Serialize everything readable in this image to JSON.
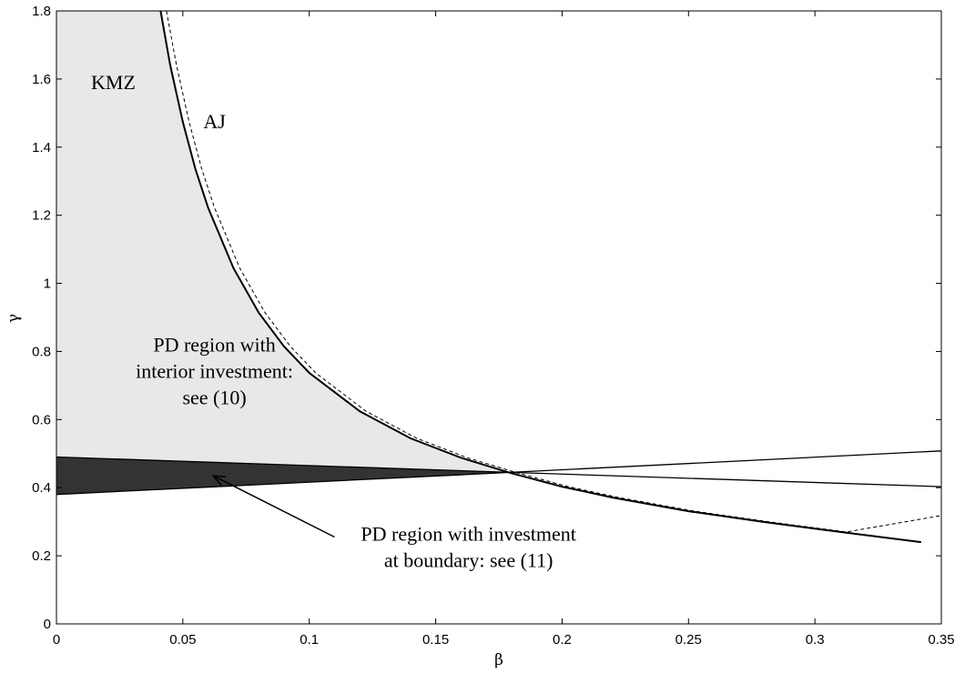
{
  "chart_data": {
    "type": "line",
    "title": "",
    "xlabel": "β",
    "ylabel": "γ",
    "xlim": [
      0,
      0.35
    ],
    "ylim": [
      0,
      1.8
    ],
    "grid": false,
    "x_ticks": [
      "0",
      "0.05",
      "0.1",
      "0.15",
      "0.2",
      "0.25",
      "0.3",
      "0.35"
    ],
    "y_ticks": [
      "0",
      "0.2",
      "0.4",
      "0.6",
      "0.8",
      "1",
      "1.2",
      "1.4",
      "1.6",
      "1.8"
    ],
    "series": [
      {
        "name": "KMZ",
        "style": "solid",
        "x": [
          0.0412,
          0.045,
          0.05,
          0.055,
          0.06,
          0.07,
          0.08,
          0.09,
          0.1,
          0.12,
          0.14,
          0.16,
          0.1796,
          0.2,
          0.22,
          0.25,
          0.28,
          0.31,
          0.342
        ],
        "y": [
          1.8,
          1.64,
          1.473,
          1.335,
          1.222,
          1.045,
          0.914,
          0.815,
          0.737,
          0.624,
          0.545,
          0.488,
          0.443,
          0.403,
          0.371,
          0.331,
          0.299,
          0.27,
          0.24
        ]
      },
      {
        "name": "AJ",
        "style": "dashed",
        "x": [
          0.0435,
          0.0475,
          0.0525,
          0.0575,
          0.0625,
          0.0725,
          0.0825,
          0.0925,
          0.1025,
          0.1225,
          0.1425,
          0.1625,
          0.1825,
          0.2025,
          0.2225,
          0.2525,
          0.2825,
          0.3125,
          0.35
        ],
        "y": [
          1.8,
          1.64,
          1.473,
          1.335,
          1.222,
          1.045,
          0.914,
          0.815,
          0.737,
          0.624,
          0.545,
          0.488,
          0.443,
          0.403,
          0.371,
          0.331,
          0.299,
          0.27,
          0.318
        ]
      },
      {
        "name": "",
        "style": "solid",
        "x": [
          0,
          0.1796,
          0.35
        ],
        "y": [
          0.38,
          0.445,
          0.508
        ]
      },
      {
        "name": "",
        "style": "solid",
        "x": [
          0,
          0.1796,
          0.35
        ],
        "y": [
          0.49,
          0.445,
          0.403
        ]
      }
    ],
    "regions": [
      {
        "name": "PD region with interior investment",
        "color": "#e8e8e8",
        "boundary_x": [
          0,
          0,
          0.0412,
          0.045,
          0.05,
          0.055,
          0.06,
          0.07,
          0.08,
          0.09,
          0.1,
          0.12,
          0.14,
          0.16,
          0.1796
        ],
        "boundary_y": [
          0.49,
          1.8,
          1.8,
          1.64,
          1.473,
          1.335,
          1.222,
          1.045,
          0.914,
          0.815,
          0.737,
          0.624,
          0.545,
          0.488,
          0.445
        ]
      },
      {
        "name": "PD region with investment at boundary",
        "color": "#333333",
        "boundary_x": [
          0,
          0.1796,
          0
        ],
        "boundary_y": [
          0.49,
          0.445,
          0.38
        ]
      }
    ],
    "annotations": [
      {
        "lines": [
          "KMZ"
        ],
        "x": 0.0225,
        "y": 1.57
      },
      {
        "lines": [
          "AJ"
        ],
        "x": 0.0625,
        "y": 1.455
      },
      {
        "lines": [
          "PD region with",
          "interior investment:",
          "see (10)"
        ],
        "x": 0.0625,
        "y": 0.8
      },
      {
        "lines": [
          "PD region with investment",
          "at boundary: see (11)"
        ],
        "x": 0.163,
        "y": 0.245
      }
    ],
    "arrows": [
      {
        "from_x": 0.11,
        "from_y": 0.255,
        "to_x": 0.062,
        "to_y": 0.435
      }
    ]
  }
}
